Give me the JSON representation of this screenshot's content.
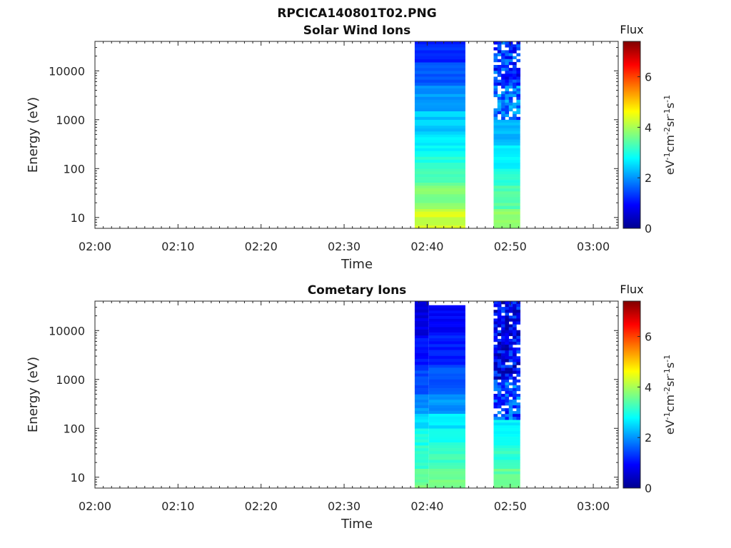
{
  "figure_title": "RPCICA140801T02.PNG",
  "colorbar": {
    "title": "Flux",
    "label_base": "eV",
    "ticks": [
      "0",
      "2",
      "4",
      "6"
    ],
    "range": [
      0,
      7.4
    ],
    "colormap": "jet"
  },
  "chart_data": [
    {
      "type": "heatmap",
      "title": "Solar Wind Ions",
      "xlabel": "Time",
      "ylabel": "Energy (eV)",
      "x_ticks": [
        "02:00",
        "02:10",
        "02:20",
        "02:30",
        "02:40",
        "02:50",
        "03:00"
      ],
      "y_ticks": [
        "10",
        "100",
        "1000",
        "10000"
      ],
      "y_scale": "log",
      "ylim": [
        6,
        40000
      ],
      "xlim": [
        "02:00",
        "03:03"
      ],
      "blocks": [
        {
          "t_start": "02:38.5",
          "t_end": "02:44.6",
          "noisy_above_eV": 0,
          "bands": [
            {
              "e_lo": 6,
              "e_hi": 15,
              "flux": 4.3
            },
            {
              "e_lo": 15,
              "e_hi": 45,
              "flux": 3.7
            },
            {
              "e_lo": 45,
              "e_hi": 100,
              "flux": 3.4
            },
            {
              "e_lo": 100,
              "e_hi": 200,
              "flux": 3.0
            },
            {
              "e_lo": 200,
              "e_hi": 500,
              "flux": 2.7
            },
            {
              "e_lo": 500,
              "e_hi": 1500,
              "flux": 2.4
            },
            {
              "e_lo": 1500,
              "e_hi": 5000,
              "flux": 2.0
            },
            {
              "e_lo": 5000,
              "e_hi": 15000,
              "flux": 1.6
            },
            {
              "e_lo": 15000,
              "e_hi": 40000,
              "flux": 1.2
            }
          ]
        },
        {
          "t_start": "02:48.0",
          "t_end": "02:51.2",
          "noisy_above_eV": 1000,
          "bands": [
            {
              "e_lo": 6,
              "e_hi": 15,
              "flux": 3.9
            },
            {
              "e_lo": 15,
              "e_hi": 45,
              "flux": 3.4
            },
            {
              "e_lo": 45,
              "e_hi": 100,
              "flux": 3.0
            },
            {
              "e_lo": 100,
              "e_hi": 300,
              "flux": 2.7
            },
            {
              "e_lo": 300,
              "e_hi": 1000,
              "flux": 2.3
            },
            {
              "e_lo": 1000,
              "e_hi": 5000,
              "flux": 1.8
            },
            {
              "e_lo": 5000,
              "e_hi": 40000,
              "flux": 1.3
            }
          ]
        }
      ]
    },
    {
      "type": "heatmap",
      "title": "Cometary Ions",
      "xlabel": "Time",
      "ylabel": "Energy (eV)",
      "x_ticks": [
        "02:00",
        "02:10",
        "02:20",
        "02:30",
        "02:40",
        "02:50",
        "03:00"
      ],
      "y_ticks": [
        "10",
        "100",
        "1000",
        "10000"
      ],
      "y_scale": "log",
      "ylim": [
        6,
        40000
      ],
      "xlim": [
        "02:00",
        "03:03"
      ],
      "blocks": [
        {
          "t_start": "02:38.5",
          "t_end": "02:40.2",
          "noisy_above_eV": 0,
          "bands": [
            {
              "e_lo": 6,
              "e_hi": 15,
              "flux": 3.6
            },
            {
              "e_lo": 15,
              "e_hi": 45,
              "flux": 3.2
            },
            {
              "e_lo": 45,
              "e_hi": 100,
              "flux": 3.0
            },
            {
              "e_lo": 100,
              "e_hi": 200,
              "flux": 2.6
            },
            {
              "e_lo": 200,
              "e_hi": 500,
              "flux": 2.0
            },
            {
              "e_lo": 500,
              "e_hi": 2000,
              "flux": 1.4
            },
            {
              "e_lo": 2000,
              "e_hi": 8000,
              "flux": 1.0
            },
            {
              "e_lo": 8000,
              "e_hi": 40000,
              "flux": 0.7
            }
          ]
        },
        {
          "t_start": "02:40.2",
          "t_end": "02:44.6",
          "noisy_above_eV": 0,
          "bands": [
            {
              "e_lo": 6,
              "e_hi": 15,
              "flux": 3.6
            },
            {
              "e_lo": 15,
              "e_hi": 45,
              "flux": 3.2
            },
            {
              "e_lo": 45,
              "e_hi": 100,
              "flux": 3.0
            },
            {
              "e_lo": 100,
              "e_hi": 200,
              "flux": 2.6
            },
            {
              "e_lo": 200,
              "e_hi": 500,
              "flux": 2.0
            },
            {
              "e_lo": 500,
              "e_hi": 2000,
              "flux": 1.5
            },
            {
              "e_lo": 2000,
              "e_hi": 8000,
              "flux": 1.1
            },
            {
              "e_lo": 8000,
              "e_hi": 33000,
              "flux": 0.9
            }
          ]
        },
        {
          "t_start": "02:48.0",
          "t_end": "02:51.2",
          "noisy_above_eV": 150,
          "bands": [
            {
              "e_lo": 6,
              "e_hi": 15,
              "flux": 3.5
            },
            {
              "e_lo": 15,
              "e_hi": 45,
              "flux": 3.1
            },
            {
              "e_lo": 45,
              "e_hi": 150,
              "flux": 2.7
            },
            {
              "e_lo": 150,
              "e_hi": 1000,
              "flux": 1.5
            },
            {
              "e_lo": 1000,
              "e_hi": 40000,
              "flux": 0.9
            }
          ]
        }
      ]
    }
  ]
}
